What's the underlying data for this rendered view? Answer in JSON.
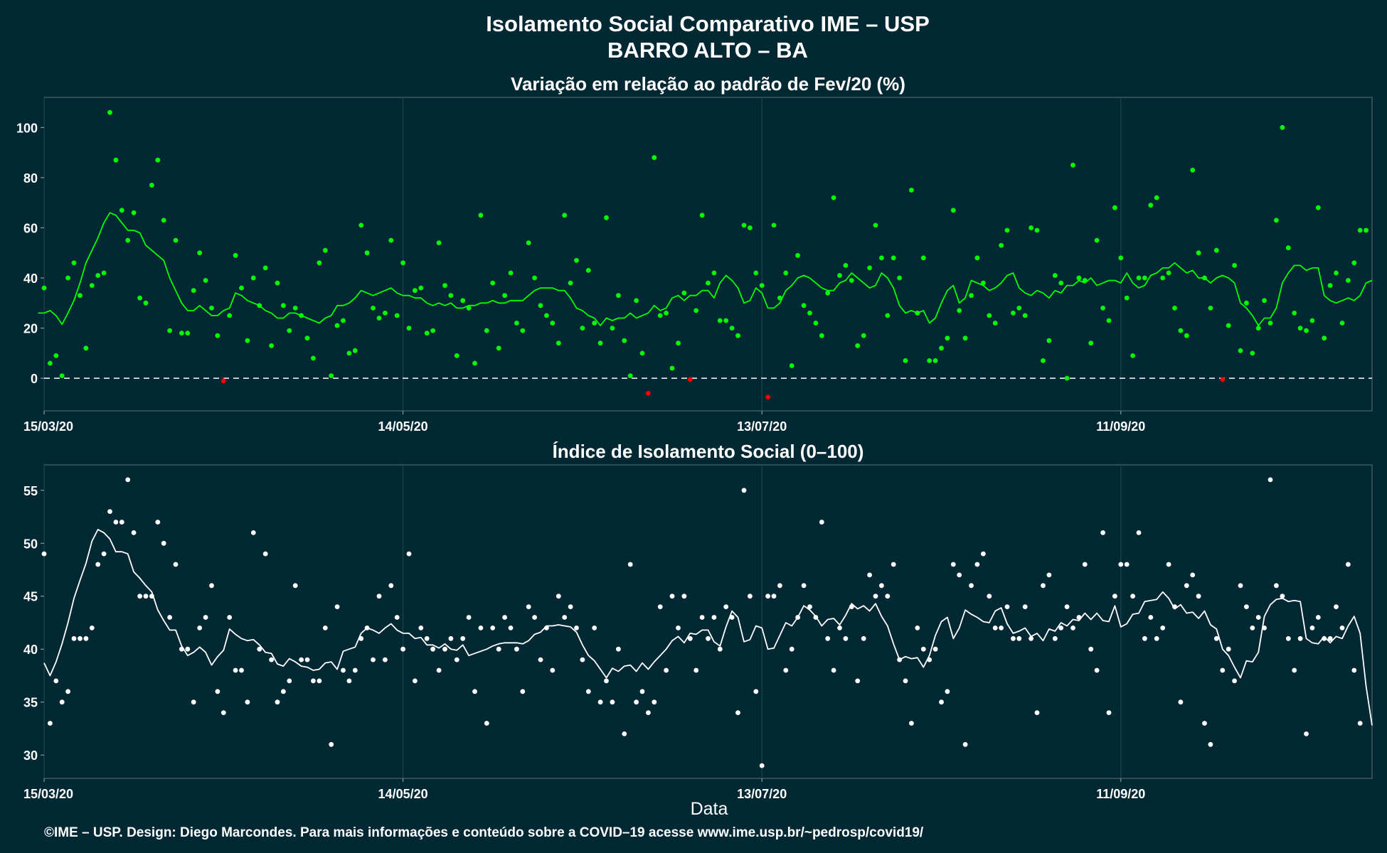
{
  "header": {
    "title": "Isolamento Social Comparativo IME – USP",
    "subtitle": "BARRO ALTO – BA"
  },
  "footer": {
    "xlabel": "Data",
    "credit": "©IME – USP. Design: Diego Marcondes. Para mais informações e conteúdo sobre a COVID–19 acesse www.ime.usp.br/~pedrosp/covid19/"
  },
  "colors": {
    "background": "#022833",
    "positive_points": "#00ff00",
    "negative_points": "#ff0000",
    "index_points": "#ffffff",
    "text": "#ffffff"
  },
  "chart_data": [
    {
      "type": "scatter",
      "title": "Variação em relação ao padrão de Fev/20 (%)",
      "x_start": "15/03/20",
      "x_range": [
        0,
        222
      ],
      "ylim": [
        -13,
        112
      ],
      "yticks": [
        "0",
        "20",
        "40",
        "60",
        "80",
        "100"
      ],
      "ytick_values": [
        0,
        20,
        40,
        60,
        80,
        100
      ],
      "xticks": [
        "15/03/20",
        "14/05/20",
        "13/07/20",
        "11/09/20"
      ],
      "xtick_values": [
        0,
        60,
        120,
        180
      ],
      "reference_line": 0,
      "grid": true,
      "series": [
        {
          "kind": "daily_points",
          "values": [
            36,
            6,
            9,
            1,
            40,
            46,
            33,
            12,
            37,
            41,
            42,
            106,
            87,
            67,
            55,
            66,
            32,
            30,
            77,
            87,
            63,
            19,
            55,
            18,
            18,
            35,
            50,
            39,
            28,
            17,
            -1,
            25,
            49,
            36,
            15,
            40,
            29,
            44,
            13,
            38,
            29,
            19,
            28,
            25,
            16,
            8,
            46,
            51,
            1,
            21,
            23,
            10,
            11,
            61,
            50,
            28,
            24,
            26,
            55,
            25,
            46,
            20,
            35,
            36,
            18,
            19,
            54,
            37,
            33,
            9,
            31,
            28,
            6,
            65,
            19,
            38,
            12,
            33,
            42,
            22,
            19,
            54,
            40,
            29,
            25,
            22,
            14,
            65,
            38,
            47,
            20,
            43,
            22,
            14,
            64,
            20,
            33,
            15,
            1,
            31,
            10,
            -6,
            88,
            25,
            26,
            4,
            14,
            34,
            -0.5,
            27,
            65,
            38,
            42,
            23,
            23,
            20,
            17,
            61,
            60,
            42,
            37,
            -7.5,
            61,
            32,
            42,
            5,
            49,
            29,
            26,
            22,
            17,
            34,
            72,
            41,
            45,
            39,
            13,
            17,
            44,
            61,
            48,
            25,
            48,
            40,
            7,
            75,
            26,
            48,
            7,
            7,
            12,
            16,
            67,
            27,
            16,
            33,
            48,
            38,
            25,
            22,
            53,
            59,
            26,
            28,
            25,
            60,
            59,
            7,
            15,
            41,
            38,
            0,
            85,
            40,
            39,
            14,
            55,
            28,
            23,
            68,
            48,
            32,
            9,
            40,
            40,
            69,
            72,
            40,
            42,
            28,
            19,
            17,
            83,
            50,
            40,
            28,
            51,
            -0.5,
            21,
            45,
            11,
            30,
            10,
            20,
            31,
            22,
            63,
            100,
            52,
            26,
            20,
            19,
            23,
            68,
            16,
            37,
            42,
            22,
            39,
            46,
            59,
            59
          ],
          "highlight_negative": true
        },
        {
          "kind": "moving_average",
          "values": [
            26,
            26,
            27,
            25,
            21.5,
            26,
            31,
            38,
            46,
            51,
            56,
            62,
            66,
            65,
            62,
            59,
            59,
            58,
            53,
            51,
            49,
            47,
            40,
            35,
            30,
            27,
            27,
            29,
            27,
            25,
            25,
            27,
            28,
            34,
            33,
            31,
            30,
            29,
            27,
            26,
            24,
            24,
            26,
            26,
            25,
            24,
            23,
            22,
            24,
            25,
            29,
            29,
            30,
            32,
            35,
            34,
            33,
            34,
            35,
            36,
            34,
            33,
            33,
            32,
            32,
            30,
            29,
            30,
            29,
            30,
            28,
            28,
            29,
            29,
            30,
            30,
            31,
            30,
            30,
            31,
            31,
            31,
            33,
            35,
            36,
            36,
            36,
            35,
            35,
            32,
            28,
            27,
            25,
            24,
            21,
            24,
            23,
            24,
            24,
            26,
            24,
            25,
            26,
            29,
            27,
            28,
            32,
            33,
            31,
            33,
            33,
            35,
            35,
            32,
            38,
            41,
            39,
            36,
            30,
            31,
            36,
            34,
            28,
            28,
            30,
            35,
            37,
            40,
            41,
            40,
            38,
            36,
            35,
            35,
            38,
            39,
            42,
            40,
            38,
            36,
            37,
            42,
            40,
            36,
            29,
            26,
            27,
            26,
            27,
            22,
            24,
            30,
            35,
            37,
            30,
            32,
            39,
            38,
            37,
            35,
            36,
            38,
            41,
            42,
            36,
            34,
            33,
            35,
            34,
            32,
            35,
            34,
            37,
            37,
            39,
            38,
            40,
            37,
            38,
            39,
            39,
            38,
            42,
            38,
            36,
            37,
            41,
            42,
            44,
            44,
            46,
            44,
            42,
            43,
            40,
            40,
            38,
            40,
            41,
            40,
            38,
            30,
            28,
            25,
            21,
            24,
            24,
            28,
            38,
            42,
            45,
            45,
            43,
            44,
            44,
            33,
            31,
            30,
            31,
            32,
            31,
            33,
            38,
            39
          ]
        }
      ]
    },
    {
      "type": "scatter",
      "title": "Índice de Isolamento Social (0–100)",
      "x_start": "15/03/20",
      "x_range": [
        0,
        222
      ],
      "ylim": [
        27.8,
        57.4
      ],
      "yticks": [
        "30",
        "35",
        "40",
        "45",
        "50",
        "55"
      ],
      "ytick_values": [
        30,
        35,
        40,
        45,
        50,
        55
      ],
      "xticks": [
        "15/03/20",
        "14/05/20",
        "13/07/20",
        "11/09/20"
      ],
      "xtick_values": [
        0,
        60,
        120,
        180
      ],
      "grid": true,
      "xlabel": "Data",
      "series": [
        {
          "kind": "daily_points",
          "values": [
            49,
            33,
            37,
            35,
            36,
            41,
            41,
            41,
            42,
            48,
            49,
            53,
            52,
            52,
            56,
            51,
            45,
            45,
            45,
            52,
            50,
            43,
            48,
            40,
            40,
            35,
            42,
            43,
            46,
            36,
            34,
            43,
            38,
            38,
            35,
            51,
            40,
            49,
            39,
            35,
            36,
            37,
            46,
            39,
            39,
            37,
            37,
            42,
            31,
            44,
            38,
            37,
            38,
            41,
            42,
            39,
            45,
            39,
            46,
            43,
            40,
            49,
            37,
            42,
            41,
            40,
            38,
            40,
            41,
            39,
            41,
            43,
            36,
            42,
            33,
            42,
            40,
            43,
            42,
            40,
            36,
            44,
            43,
            39,
            42,
            38,
            45,
            43,
            44,
            42,
            39,
            36,
            42,
            35,
            37,
            35,
            40,
            32,
            48,
            35,
            36,
            34,
            35,
            44,
            38,
            45,
            42,
            45,
            41,
            38,
            43,
            41,
            43,
            40,
            44,
            43,
            34,
            55,
            45,
            36,
            29,
            45,
            45,
            46,
            38,
            40,
            43,
            46,
            44,
            43,
            52,
            41,
            38,
            42,
            41,
            44,
            37,
            41,
            47,
            45,
            46,
            45,
            48,
            39,
            37,
            33,
            42,
            40,
            39,
            40,
            35,
            36,
            48,
            47,
            31,
            46,
            48,
            49,
            45,
            42,
            42,
            44,
            41,
            41,
            44,
            41,
            34,
            46,
            47,
            41,
            42,
            44,
            42,
            43,
            48,
            40,
            38,
            51,
            34,
            45,
            48,
            48,
            45,
            51,
            41,
            43,
            41,
            42,
            48,
            44,
            35,
            46,
            47,
            45,
            33,
            31,
            41,
            38,
            40,
            37,
            46,
            44,
            42,
            43,
            42,
            56,
            46,
            45,
            41,
            38,
            41,
            32,
            42,
            43,
            41,
            41,
            44,
            42,
            48,
            38,
            33
          ]
        },
        {
          "kind": "moving_average",
          "values": [
            38.7,
            37.5,
            38.8,
            40.5,
            42.5,
            44.8,
            46.5,
            48.1,
            50.2,
            51.3,
            51.0,
            50.4,
            49.2,
            49.2,
            49.0,
            47.3,
            46.7,
            46.0,
            45.4,
            43.7,
            42.7,
            41.8,
            41.8,
            40.3,
            39.4,
            39.7,
            40.2,
            39.7,
            38.5,
            39.3,
            39.9,
            41.9,
            41.4,
            41.0,
            40.8,
            40.9,
            40.4,
            39.7,
            39.6,
            38.6,
            38.4,
            39.1,
            38.8,
            38.4,
            38.3,
            38.0,
            38.1,
            38.7,
            38.8,
            38.1,
            39.8,
            40.0,
            40.2,
            41.5,
            42.0,
            41.8,
            41.5,
            42.0,
            42.4,
            41.8,
            41.5,
            41.5,
            41.0,
            41.1,
            40.4,
            40.4,
            40.1,
            40.5,
            40.0,
            39.9,
            40.4,
            39.4,
            39.6,
            39.8,
            40.0,
            40.3,
            40.5,
            40.6,
            40.6,
            40.6,
            40.5,
            40.8,
            41.4,
            41.6,
            42.2,
            42.2,
            42.3,
            42.2,
            42.1,
            41.6,
            40.4,
            39.4,
            38.9,
            38.1,
            37.3,
            38.2,
            37.9,
            38.4,
            38.5,
            37.9,
            38.7,
            38.1,
            38.8,
            39.4,
            40.0,
            40.8,
            41.2,
            40.6,
            41.5,
            41.4,
            41.8,
            41.8,
            40.7,
            40.3,
            42.1,
            43.6,
            43.0,
            40.7,
            40.9,
            42.2,
            42.0,
            40.0,
            40.1,
            41.3,
            42.5,
            42.2,
            43.0,
            44.1,
            43.7,
            43.1,
            42.2,
            42.8,
            42.9,
            42.3,
            43.2,
            44.3,
            43.8,
            44.1,
            43.6,
            44.3,
            43.1,
            42.2,
            40.5,
            39.0,
            39.3,
            39.1,
            39.2,
            38.3,
            39.4,
            41.3,
            42.6,
            43.0,
            41.0,
            42.0,
            43.7,
            43.3,
            43.0,
            42.6,
            42.5,
            43.6,
            43.9,
            42.4,
            41.5,
            41.7,
            42.0,
            41.2,
            41.5,
            40.8,
            41.9,
            41.7,
            42.5,
            42.2,
            42.8,
            42.7,
            43.4,
            42.8,
            43.4,
            42.7,
            42.6,
            44.1,
            42.1,
            42.4,
            43.3,
            43.4,
            44.5,
            44.6,
            44.7,
            45.4,
            44.8,
            43.8,
            44.2,
            43.4,
            43.5,
            42.9,
            43.6,
            42.3,
            41.9,
            40.0,
            39.4,
            38.3,
            37.3,
            38.9,
            38.8,
            39.7,
            43.1,
            44.2,
            44.7,
            44.8,
            44.5,
            44.6,
            44.5,
            41.0,
            40.6,
            40.5,
            41.2,
            40.6,
            41.2,
            41.0,
            42.2,
            43.1,
            41.5,
            36.5,
            32.8
          ]
        }
      ]
    }
  ]
}
